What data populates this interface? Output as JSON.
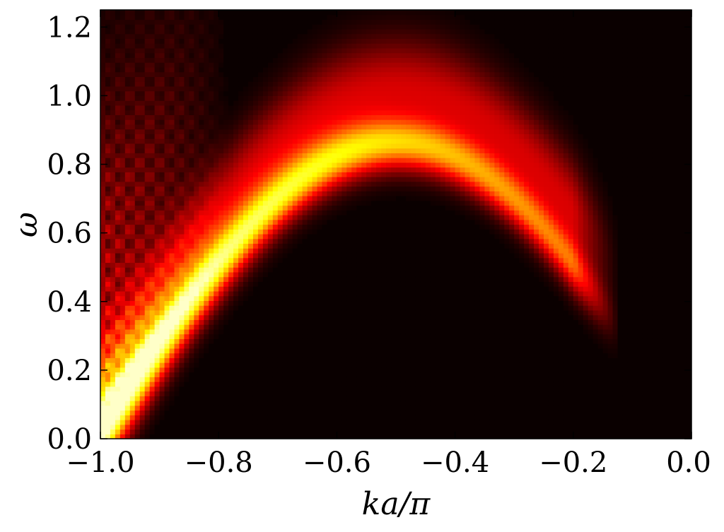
{
  "chart_data": {
    "type": "heatmap",
    "title": "",
    "xlabel": "ka/π",
    "ylabel": "ω",
    "xlim": [
      -1.0,
      0.0
    ],
    "ylim": [
      0.0,
      1.25
    ],
    "xticks": [
      -1.0,
      -0.8,
      -0.6,
      -0.4,
      -0.2,
      0.0
    ],
    "xtick_labels": [
      "−1.0",
      "−0.8",
      "−0.6",
      "−0.4",
      "−0.2",
      "0.0"
    ],
    "yticks": [
      0.0,
      0.2,
      0.4,
      0.6,
      0.8,
      1.0,
      1.2
    ],
    "ytick_labels": [
      "0.0",
      "0.2",
      "0.4",
      "0.6",
      "0.8",
      "1.0",
      "1.2"
    ],
    "colormap": "hot",
    "background_color": "#0a0000",
    "grid": false,
    "band": {
      "description_points_k": [
        -1.0,
        -0.9,
        -0.8,
        -0.7,
        -0.6,
        -0.5,
        -0.45,
        -0.4,
        -0.3,
        -0.2,
        -0.15
      ],
      "description_points_omega": [
        0.12,
        0.3,
        0.52,
        0.7,
        0.82,
        0.86,
        0.86,
        0.84,
        0.72,
        0.56,
        0.44
      ],
      "k_end": -0.14
    }
  }
}
